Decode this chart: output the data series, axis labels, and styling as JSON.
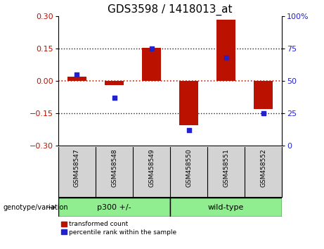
{
  "title": "GDS3598 / 1418013_at",
  "samples": [
    "GSM458547",
    "GSM458548",
    "GSM458549",
    "GSM458550",
    "GSM458551",
    "GSM458552"
  ],
  "red_bars": [
    0.02,
    -0.02,
    0.152,
    -0.205,
    0.285,
    -0.13
  ],
  "blue_dots_pct": [
    55,
    37,
    75,
    12,
    68,
    25
  ],
  "ylim_left": [
    -0.3,
    0.3
  ],
  "ylim_right": [
    0,
    100
  ],
  "yticks_left": [
    -0.3,
    -0.15,
    0,
    0.15,
    0.3
  ],
  "yticks_right": [
    0,
    25,
    50,
    75,
    100
  ],
  "hlines_dotted": [
    -0.15,
    0.15
  ],
  "zero_line_y": 0,
  "group1_label": "p300 +/-",
  "group2_label": "wild-type",
  "group_color": "#90EE90",
  "label_bg": "#D3D3D3",
  "bar_color": "#BB1100",
  "dot_color": "#2222CC",
  "zero_line_color": "#CC2200",
  "hline_color": "#222222",
  "bg_color": "#FFFFFF",
  "legend_red_label": "transformed count",
  "legend_blue_label": "percentile rank within the sample",
  "genotype_label": "genotype/variation",
  "title_fontsize": 11,
  "axis_fontsize": 8,
  "bar_width": 0.5
}
